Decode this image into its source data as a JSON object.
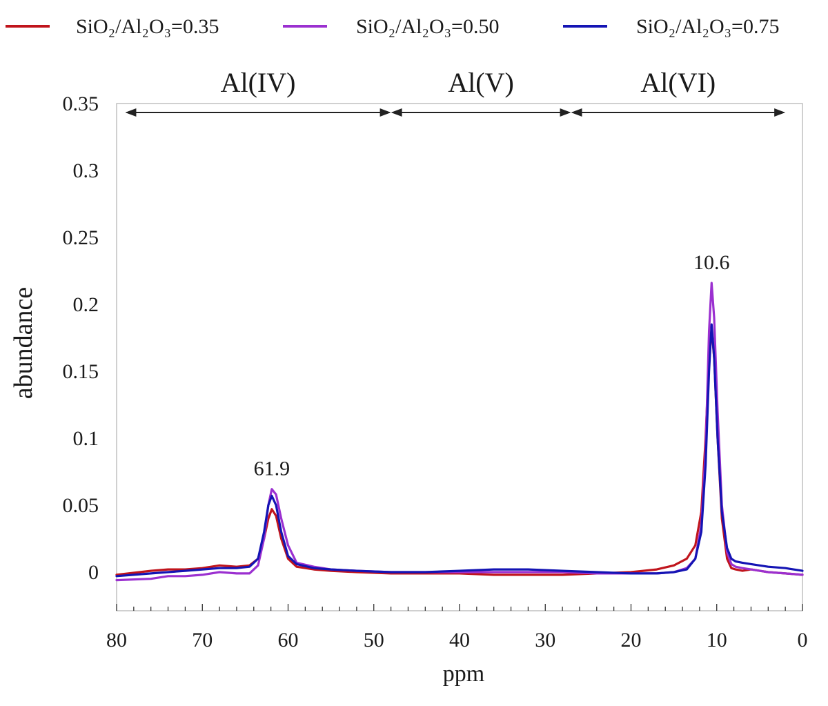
{
  "chart_data": {
    "type": "line",
    "xlabel": "ppm",
    "ylabel": "abundance",
    "xlim": [
      80,
      0
    ],
    "ylim": [
      -0.03,
      0.35
    ],
    "x_reversed": true,
    "x_ticks": [
      80,
      70,
      60,
      50,
      40,
      30,
      20,
      10,
      0
    ],
    "x_tick_labels": [
      "80",
      "70",
      "60",
      "50",
      "40",
      "30",
      "20",
      "10",
      "0"
    ],
    "y_ticks": [
      0,
      0.05,
      0.1,
      0.15,
      0.2,
      0.25,
      0.3,
      0.35
    ],
    "y_tick_labels": [
      "0",
      "0.05",
      "0.1",
      "0.15",
      "0.2",
      "0.25",
      "0.3",
      "0.35"
    ],
    "grid": false,
    "legend_position": "top",
    "series": [
      {
        "name": "SiO₂/Al₂O₃=0.35",
        "color": "#c0141c",
        "x": [
          80,
          76,
          74,
          72,
          70,
          68,
          66,
          64.5,
          63.5,
          62.8,
          62.3,
          61.9,
          61.4,
          60.8,
          60,
          59,
          57,
          55,
          52,
          48,
          44,
          40,
          36,
          32,
          28,
          24,
          20,
          17,
          15,
          13.5,
          12.5,
          11.8,
          11.3,
          10.9,
          10.6,
          10.3,
          9.9,
          9.4,
          8.8,
          8.3,
          7.8,
          7,
          6,
          5,
          4,
          2,
          0
        ],
        "y": [
          -0.002,
          0.001,
          0.002,
          0.002,
          0.003,
          0.005,
          0.004,
          0.005,
          0.01,
          0.025,
          0.04,
          0.047,
          0.042,
          0.025,
          0.01,
          0.004,
          0.002,
          0.001,
          0,
          -0.001,
          -0.001,
          -0.001,
          -0.002,
          -0.002,
          -0.002,
          -0.001,
          0,
          0.002,
          0.005,
          0.01,
          0.02,
          0.045,
          0.1,
          0.16,
          0.182,
          0.16,
          0.1,
          0.04,
          0.01,
          0.003,
          0.002,
          0.001,
          0.002,
          0.001,
          0,
          -0.001,
          -0.002
        ]
      },
      {
        "name": "SiO₂/Al₂O₃=0.50",
        "color": "#9b30d0",
        "x": [
          80,
          76,
          74,
          72,
          70,
          68,
          66,
          64.5,
          63.5,
          62.8,
          62.3,
          61.9,
          61.4,
          60.8,
          60,
          59,
          57,
          55,
          52,
          48,
          44,
          40,
          36,
          32,
          28,
          24,
          20,
          17,
          15,
          13.5,
          12.5,
          11.8,
          11.3,
          10.9,
          10.6,
          10.3,
          9.9,
          9.4,
          8.8,
          8.3,
          7.8,
          7,
          6,
          5,
          4,
          2,
          0
        ],
        "y": [
          -0.006,
          -0.005,
          -0.003,
          -0.003,
          -0.002,
          0,
          -0.001,
          -0.001,
          0.005,
          0.025,
          0.05,
          0.062,
          0.058,
          0.04,
          0.02,
          0.007,
          0.004,
          0.002,
          0.001,
          0,
          0,
          0,
          0,
          0,
          0,
          -0.001,
          -0.001,
          -0.001,
          0,
          0.003,
          0.01,
          0.035,
          0.09,
          0.18,
          0.216,
          0.19,
          0.12,
          0.05,
          0.015,
          0.006,
          0.004,
          0.003,
          0.002,
          0.001,
          0,
          -0.001,
          -0.002
        ]
      },
      {
        "name": "SiO₂/Al₂O₃=0.75",
        "color": "#1414b4",
        "x": [
          80,
          76,
          74,
          72,
          70,
          68,
          66,
          64.5,
          63.5,
          62.8,
          62.3,
          61.9,
          61.4,
          60.8,
          60,
          59,
          57,
          55,
          52,
          48,
          44,
          40,
          36,
          32,
          28,
          24,
          20,
          17,
          15,
          13.5,
          12.5,
          11.8,
          11.3,
          10.9,
          10.6,
          10.3,
          9.9,
          9.4,
          8.8,
          8.3,
          7.8,
          7,
          6,
          5,
          4,
          2,
          0
        ],
        "y": [
          -0.003,
          -0.001,
          0,
          0.001,
          0.002,
          0.003,
          0.003,
          0.004,
          0.01,
          0.03,
          0.05,
          0.057,
          0.05,
          0.03,
          0.012,
          0.006,
          0.003,
          0.002,
          0.001,
          0,
          0,
          0.001,
          0.002,
          0.002,
          0.001,
          0,
          -0.001,
          -0.001,
          0,
          0.002,
          0.01,
          0.03,
          0.08,
          0.15,
          0.185,
          0.16,
          0.1,
          0.045,
          0.018,
          0.01,
          0.008,
          0.007,
          0.006,
          0.005,
          0.004,
          0.003,
          0.001
        ]
      }
    ],
    "regions": [
      {
        "label": "Al(IV)",
        "from": 79,
        "to": 48
      },
      {
        "label": "Al(V)",
        "from": 48,
        "to": 27
      },
      {
        "label": "Al(VI)",
        "from": 27,
        "to": 2
      }
    ],
    "annotations": [
      {
        "text": "61.9",
        "x": 61.9,
        "y": 0.062
      },
      {
        "text": "10.6",
        "x": 10.6,
        "y": 0.216
      }
    ]
  }
}
